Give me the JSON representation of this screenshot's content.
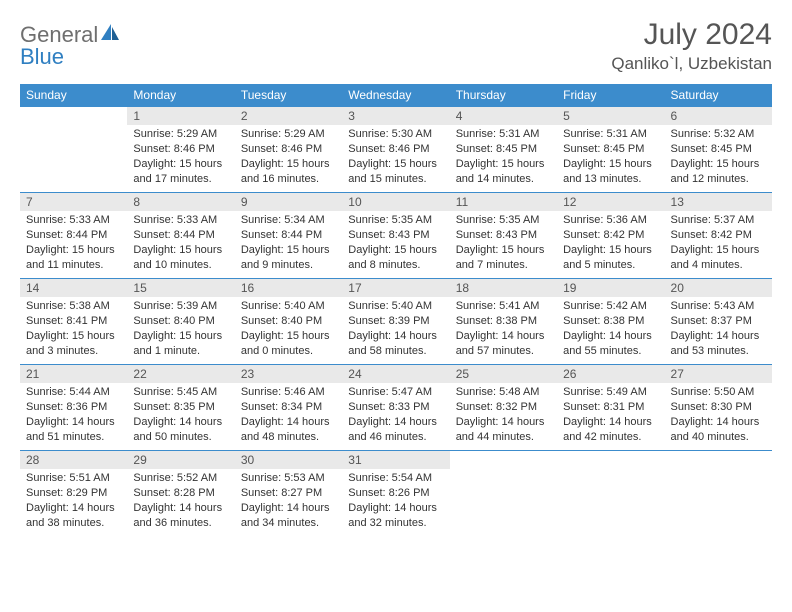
{
  "logo": {
    "text1": "General",
    "text2": "Blue",
    "text_color": "#6f6f6f",
    "accent_color": "#2f7fc1"
  },
  "title": "July 2024",
  "location": "Qanliko`l, Uzbekistan",
  "colors": {
    "header_bg": "#3c8ccc",
    "header_text": "#ffffff",
    "daynum_bg": "#e9e9e9",
    "daynum_text": "#555555",
    "body_text": "#333333",
    "row_border": "#3c8ccc",
    "page_bg": "#ffffff"
  },
  "weekdays": [
    "Sunday",
    "Monday",
    "Tuesday",
    "Wednesday",
    "Thursday",
    "Friday",
    "Saturday"
  ],
  "weeks": [
    [
      null,
      {
        "n": "1",
        "sr": "5:29 AM",
        "ss": "8:46 PM",
        "dl": "15 hours and 17 minutes."
      },
      {
        "n": "2",
        "sr": "5:29 AM",
        "ss": "8:46 PM",
        "dl": "15 hours and 16 minutes."
      },
      {
        "n": "3",
        "sr": "5:30 AM",
        "ss": "8:46 PM",
        "dl": "15 hours and 15 minutes."
      },
      {
        "n": "4",
        "sr": "5:31 AM",
        "ss": "8:45 PM",
        "dl": "15 hours and 14 minutes."
      },
      {
        "n": "5",
        "sr": "5:31 AM",
        "ss": "8:45 PM",
        "dl": "15 hours and 13 minutes."
      },
      {
        "n": "6",
        "sr": "5:32 AM",
        "ss": "8:45 PM",
        "dl": "15 hours and 12 minutes."
      }
    ],
    [
      {
        "n": "7",
        "sr": "5:33 AM",
        "ss": "8:44 PM",
        "dl": "15 hours and 11 minutes."
      },
      {
        "n": "8",
        "sr": "5:33 AM",
        "ss": "8:44 PM",
        "dl": "15 hours and 10 minutes."
      },
      {
        "n": "9",
        "sr": "5:34 AM",
        "ss": "8:44 PM",
        "dl": "15 hours and 9 minutes."
      },
      {
        "n": "10",
        "sr": "5:35 AM",
        "ss": "8:43 PM",
        "dl": "15 hours and 8 minutes."
      },
      {
        "n": "11",
        "sr": "5:35 AM",
        "ss": "8:43 PM",
        "dl": "15 hours and 7 minutes."
      },
      {
        "n": "12",
        "sr": "5:36 AM",
        "ss": "8:42 PM",
        "dl": "15 hours and 5 minutes."
      },
      {
        "n": "13",
        "sr": "5:37 AM",
        "ss": "8:42 PM",
        "dl": "15 hours and 4 minutes."
      }
    ],
    [
      {
        "n": "14",
        "sr": "5:38 AM",
        "ss": "8:41 PM",
        "dl": "15 hours and 3 minutes."
      },
      {
        "n": "15",
        "sr": "5:39 AM",
        "ss": "8:40 PM",
        "dl": "15 hours and 1 minute."
      },
      {
        "n": "16",
        "sr": "5:40 AM",
        "ss": "8:40 PM",
        "dl": "15 hours and 0 minutes."
      },
      {
        "n": "17",
        "sr": "5:40 AM",
        "ss": "8:39 PM",
        "dl": "14 hours and 58 minutes."
      },
      {
        "n": "18",
        "sr": "5:41 AM",
        "ss": "8:38 PM",
        "dl": "14 hours and 57 minutes."
      },
      {
        "n": "19",
        "sr": "5:42 AM",
        "ss": "8:38 PM",
        "dl": "14 hours and 55 minutes."
      },
      {
        "n": "20",
        "sr": "5:43 AM",
        "ss": "8:37 PM",
        "dl": "14 hours and 53 minutes."
      }
    ],
    [
      {
        "n": "21",
        "sr": "5:44 AM",
        "ss": "8:36 PM",
        "dl": "14 hours and 51 minutes."
      },
      {
        "n": "22",
        "sr": "5:45 AM",
        "ss": "8:35 PM",
        "dl": "14 hours and 50 minutes."
      },
      {
        "n": "23",
        "sr": "5:46 AM",
        "ss": "8:34 PM",
        "dl": "14 hours and 48 minutes."
      },
      {
        "n": "24",
        "sr": "5:47 AM",
        "ss": "8:33 PM",
        "dl": "14 hours and 46 minutes."
      },
      {
        "n": "25",
        "sr": "5:48 AM",
        "ss": "8:32 PM",
        "dl": "14 hours and 44 minutes."
      },
      {
        "n": "26",
        "sr": "5:49 AM",
        "ss": "8:31 PM",
        "dl": "14 hours and 42 minutes."
      },
      {
        "n": "27",
        "sr": "5:50 AM",
        "ss": "8:30 PM",
        "dl": "14 hours and 40 minutes."
      }
    ],
    [
      {
        "n": "28",
        "sr": "5:51 AM",
        "ss": "8:29 PM",
        "dl": "14 hours and 38 minutes."
      },
      {
        "n": "29",
        "sr": "5:52 AM",
        "ss": "8:28 PM",
        "dl": "14 hours and 36 minutes."
      },
      {
        "n": "30",
        "sr": "5:53 AM",
        "ss": "8:27 PM",
        "dl": "14 hours and 34 minutes."
      },
      {
        "n": "31",
        "sr": "5:54 AM",
        "ss": "8:26 PM",
        "dl": "14 hours and 32 minutes."
      },
      null,
      null,
      null
    ]
  ],
  "labels": {
    "sunrise": "Sunrise: ",
    "sunset": "Sunset: ",
    "daylight": "Daylight: "
  }
}
